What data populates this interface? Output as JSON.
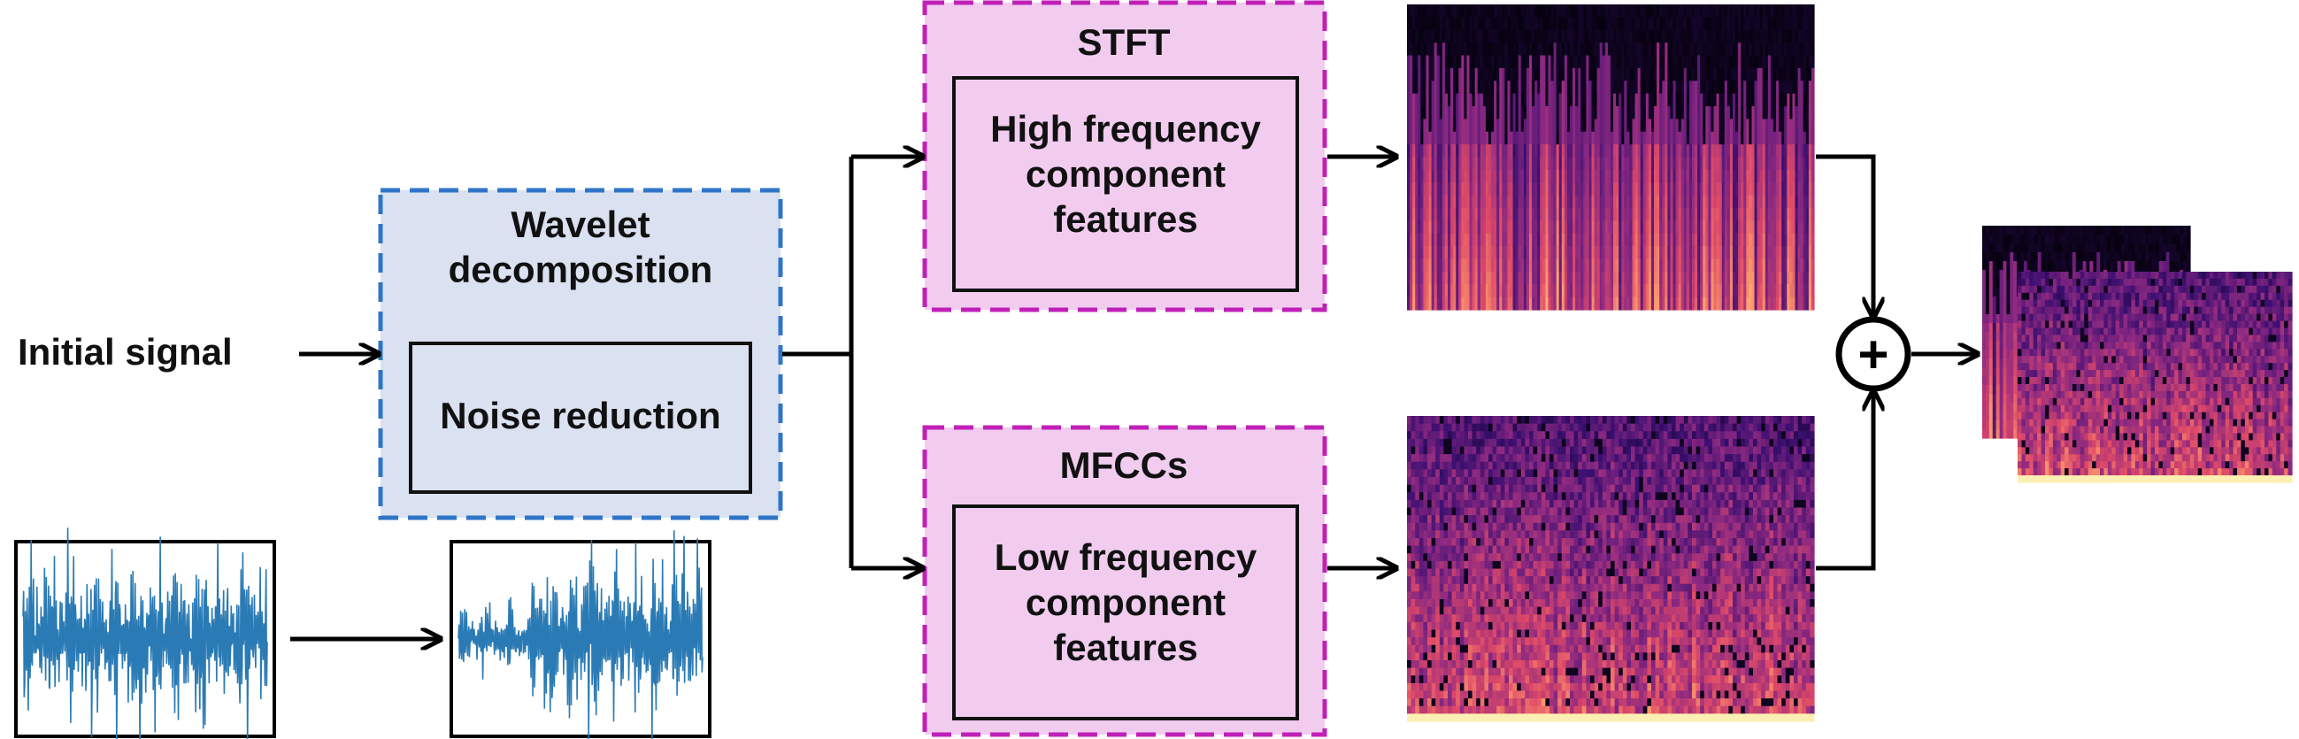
{
  "input": {
    "label": "Initial signal"
  },
  "wavelet": {
    "title": "Wavelet decomposition",
    "inner": "Noise reduction",
    "fill": "#dae1f1",
    "border": "#2f75c8"
  },
  "stft": {
    "title": "STFT",
    "inner": "High frequency component features",
    "fill": "#f1ccef",
    "border": "#c020b8"
  },
  "mfcc": {
    "title": "MFCCs",
    "inner": "Low frequency component features",
    "fill": "#f1ccef",
    "border": "#c020b8"
  },
  "fusion": {
    "symbol": "+",
    "icon": "plus-circle-icon"
  },
  "colors": {
    "stroke": "#000000",
    "waveform": "#2a7ab5",
    "spectrogram_palette": [
      "#000004",
      "#3b0f70",
      "#8c2981",
      "#de4968",
      "#fe9f6d",
      "#fcfdbf"
    ]
  }
}
